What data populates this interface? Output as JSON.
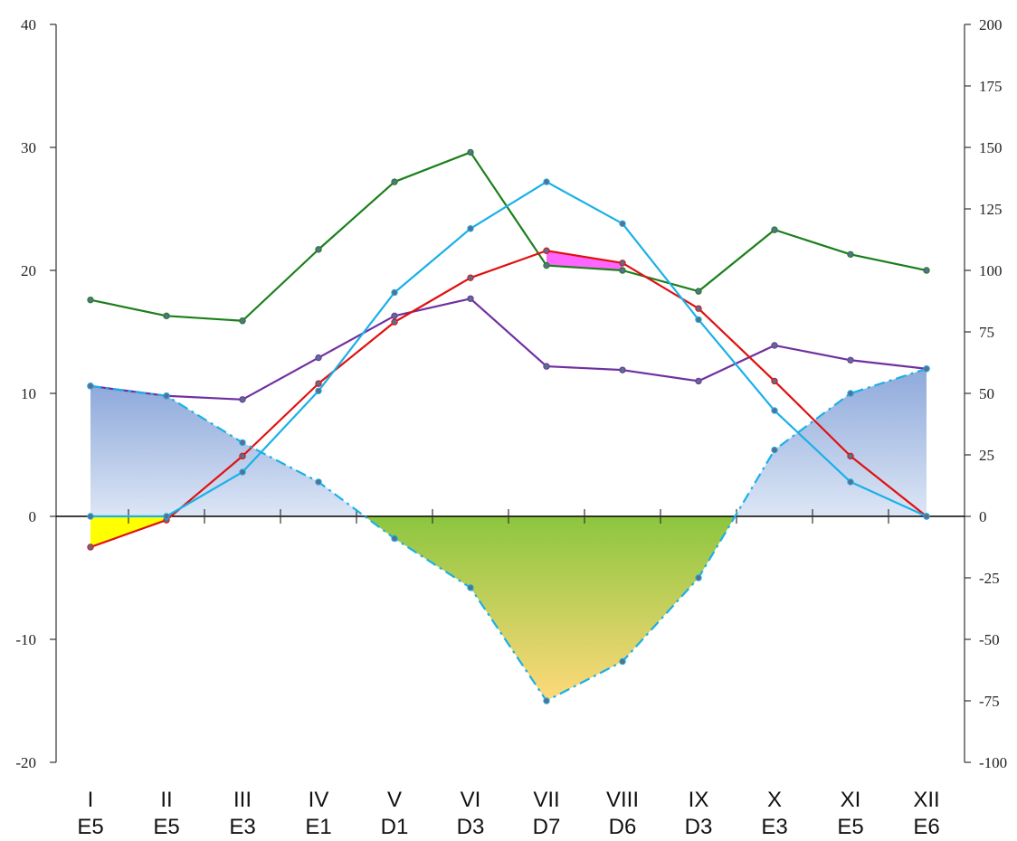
{
  "colors": {
    "temp_max": "#1a7f1a",
    "temp_mean_purple": "#7030a0",
    "temp_mean_red": "#e01010",
    "precip_line": "#1ab0e8",
    "balance_line": "#1ab0e8",
    "surplus_fill_top": "#8ea9db",
    "surplus_fill_bottom": "#dce6f5",
    "deficit_fill_top": "#8cc63f",
    "deficit_fill_bottom": "#ffd97a",
    "highlight_magenta": "#ff66ff",
    "highlight_yellow": "#ffff00",
    "axis": "#333333"
  },
  "chart_data": {
    "type": "line",
    "title": "",
    "xlabel": "",
    "ylabel": "",
    "y2label": "",
    "categories_top": [
      "I",
      "II",
      "III",
      "IV",
      "V",
      "VI",
      "VII",
      "VIII",
      "IX",
      "X",
      "XI",
      "XII"
    ],
    "categories_bottom": [
      "E5",
      "E5",
      "E3",
      "E1",
      "D1",
      "D3",
      "D7",
      "D6",
      "D3",
      "E3",
      "E5",
      "E6"
    ],
    "ylim": [
      -20,
      40
    ],
    "yticks": [
      -20,
      -10,
      0,
      10,
      20,
      30,
      40
    ],
    "y2lim": [
      -100,
      200
    ],
    "y2ticks": [
      -100,
      -75,
      -50,
      -25,
      0,
      25,
      50,
      75,
      100,
      125,
      150,
      175,
      200
    ],
    "grid": false,
    "legend": "none",
    "series": [
      {
        "axis": "left",
        "style": "solid",
        "color_key": "temp_max",
        "values": [
          17.6,
          16.3,
          15.9,
          21.7,
          27.2,
          29.6,
          20.4,
          20.0,
          18.3,
          23.3,
          21.3,
          20.0
        ]
      },
      {
        "axis": "left",
        "style": "solid",
        "color_key": "temp_mean_purple",
        "values": [
          10.6,
          9.8,
          9.5,
          12.9,
          16.3,
          17.7,
          12.2,
          11.9,
          11.0,
          13.9,
          12.7,
          12.0
        ]
      },
      {
        "axis": "left",
        "style": "solid",
        "color_key": "temp_mean_red",
        "values": [
          -2.5,
          -0.3,
          4.9,
          10.8,
          15.8,
          19.4,
          21.6,
          20.6,
          16.9,
          11.0,
          4.9,
          0.0
        ]
      },
      {
        "axis": "right",
        "style": "solid",
        "color_key": "precip_line",
        "values": [
          0,
          0,
          18,
          51,
          91,
          117,
          136,
          119,
          80,
          43,
          14,
          0
        ]
      },
      {
        "axis": "right",
        "style": "dashdot",
        "color_key": "balance_line",
        "values": [
          53,
          49,
          30,
          14,
          -9,
          -29,
          -75,
          -59,
          -25,
          27,
          50,
          60
        ]
      }
    ]
  }
}
